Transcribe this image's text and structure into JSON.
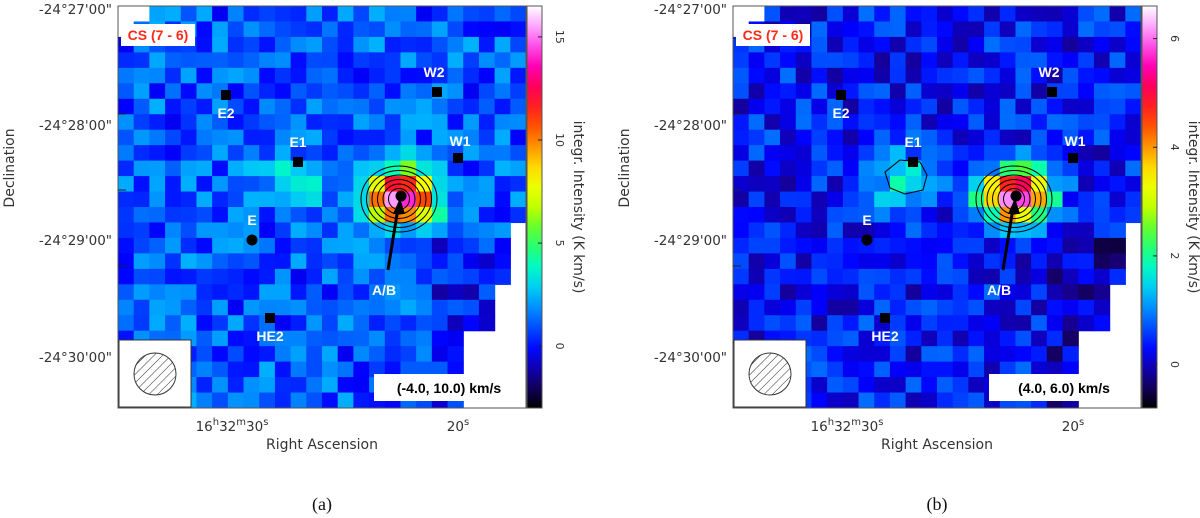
{
  "panels": [
    {
      "caption": "(a)",
      "badge": "CS (7 - 6)",
      "badge_color": "#ff2a1a",
      "vel_range": "(-4.0, 10.0) km/s",
      "colorbar_label": "integr. Intensity (K km/s)",
      "colorbar_ticks": [
        "0",
        "5",
        "10",
        "15"
      ],
      "colorbar_range": [
        -3,
        16.5
      ],
      "background_level": 1.0,
      "clump": {
        "label": "A/B",
        "peak": 15.5
      },
      "e1_blob_peak": 2.6,
      "contours": 6
    },
    {
      "caption": "(b)",
      "badge": "CS (7 - 6)",
      "badge_color": "#ff2a1a",
      "vel_range": "(4.0, 6.0) km/s",
      "colorbar_label": "integr. Intensity (K km/s)",
      "colorbar_ticks": [
        "0",
        "2",
        "4",
        "6"
      ],
      "colorbar_range": [
        -0.8,
        6.6
      ],
      "background_level": 0.35,
      "clump": {
        "label": "A/B",
        "peak": 6.2
      },
      "e1_blob_peak": 1.6,
      "contours": 6
    }
  ],
  "axes": {
    "xlabel": "Right Ascension",
    "ylabel": "Declination",
    "ra_major": "16",
    "ra_major_unit": "h",
    "ra_minor": "32",
    "ra_minor_unit": "m",
    "ra_sec": "30",
    "ra_sec_unit": "s",
    "ra_sec2": "20",
    "dec_ticks": [
      "-24°27'00\"",
      "-24°28'00\"",
      "-24°29'00\"",
      "-24°30'00\""
    ]
  },
  "sources": [
    {
      "name": "E2",
      "marker": "square"
    },
    {
      "name": "E1",
      "marker": "square"
    },
    {
      "name": "E",
      "marker": "circle"
    },
    {
      "name": "HE2",
      "marker": "square"
    },
    {
      "name": "W2",
      "marker": "square"
    },
    {
      "name": "W1",
      "marker": "square"
    },
    {
      "name": "A/B",
      "marker": "circle"
    }
  ],
  "colors": {
    "map_blue": "#1f5cff",
    "colormap": [
      "#000000",
      "#1a0080",
      "#0000ff",
      "#0060ff",
      "#00c0ff",
      "#00ffc0",
      "#40ff40",
      "#c0ff00",
      "#ffff00",
      "#ffa000",
      "#ff4000",
      "#ff0040",
      "#ff00c0",
      "#ff80ff",
      "#ffffff"
    ]
  }
}
